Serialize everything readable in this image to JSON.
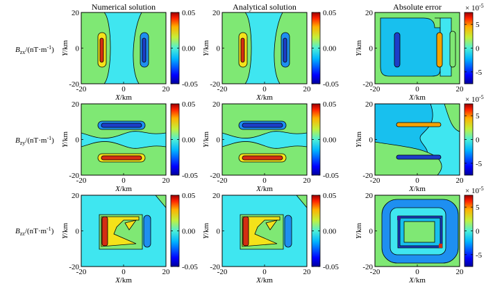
{
  "chart_data": {
    "type": "heatmap",
    "column_titles": [
      "Numerical solution",
      "Analytical solution",
      "Absolute error"
    ],
    "row_labels": [
      {
        "main": "B",
        "sub": "zx",
        "unit": "/(nT·m",
        "sup": "-1",
        "close": ")"
      },
      {
        "main": "B",
        "sub": "zy",
        "unit": "/(nT·m",
        "sup": "-1",
        "close": ")"
      },
      {
        "main": "B",
        "sub": "zz",
        "unit": "/(nT·m",
        "sup": "-1",
        "close": ")"
      }
    ],
    "xlabel": {
      "var": "X",
      "unit": "/km"
    },
    "ylabel": {
      "var": "Y",
      "unit": "/km"
    },
    "x_ticks": [
      "-20",
      "0",
      "20"
    ],
    "y_ticks": [
      "20",
      "0",
      "-20"
    ],
    "xlim": [
      -20,
      20
    ],
    "ylim": [
      -20,
      20
    ],
    "colorbar_solution": {
      "ticks": [
        "0.05",
        "0.00",
        "-0.05"
      ],
      "range": [
        -0.05,
        0.05
      ]
    },
    "colorbar_error": {
      "ticks": [
        "5",
        "0",
        "-5"
      ],
      "range": [
        -7.5,
        7.5
      ],
      "exponent_base": "× 10",
      "exponent": "-5"
    },
    "colors": {
      "background_cyan": "#3fe6f0",
      "light_green": "#7fe874",
      "sky_blue": "#18c0ee",
      "mid_blue": "#1e8ff0",
      "yellow": "#f4e21a",
      "orange": "#f5a300",
      "red": "#d42e12",
      "dark_blue": "#1c3ec8",
      "contour_line": "#000000"
    }
  }
}
